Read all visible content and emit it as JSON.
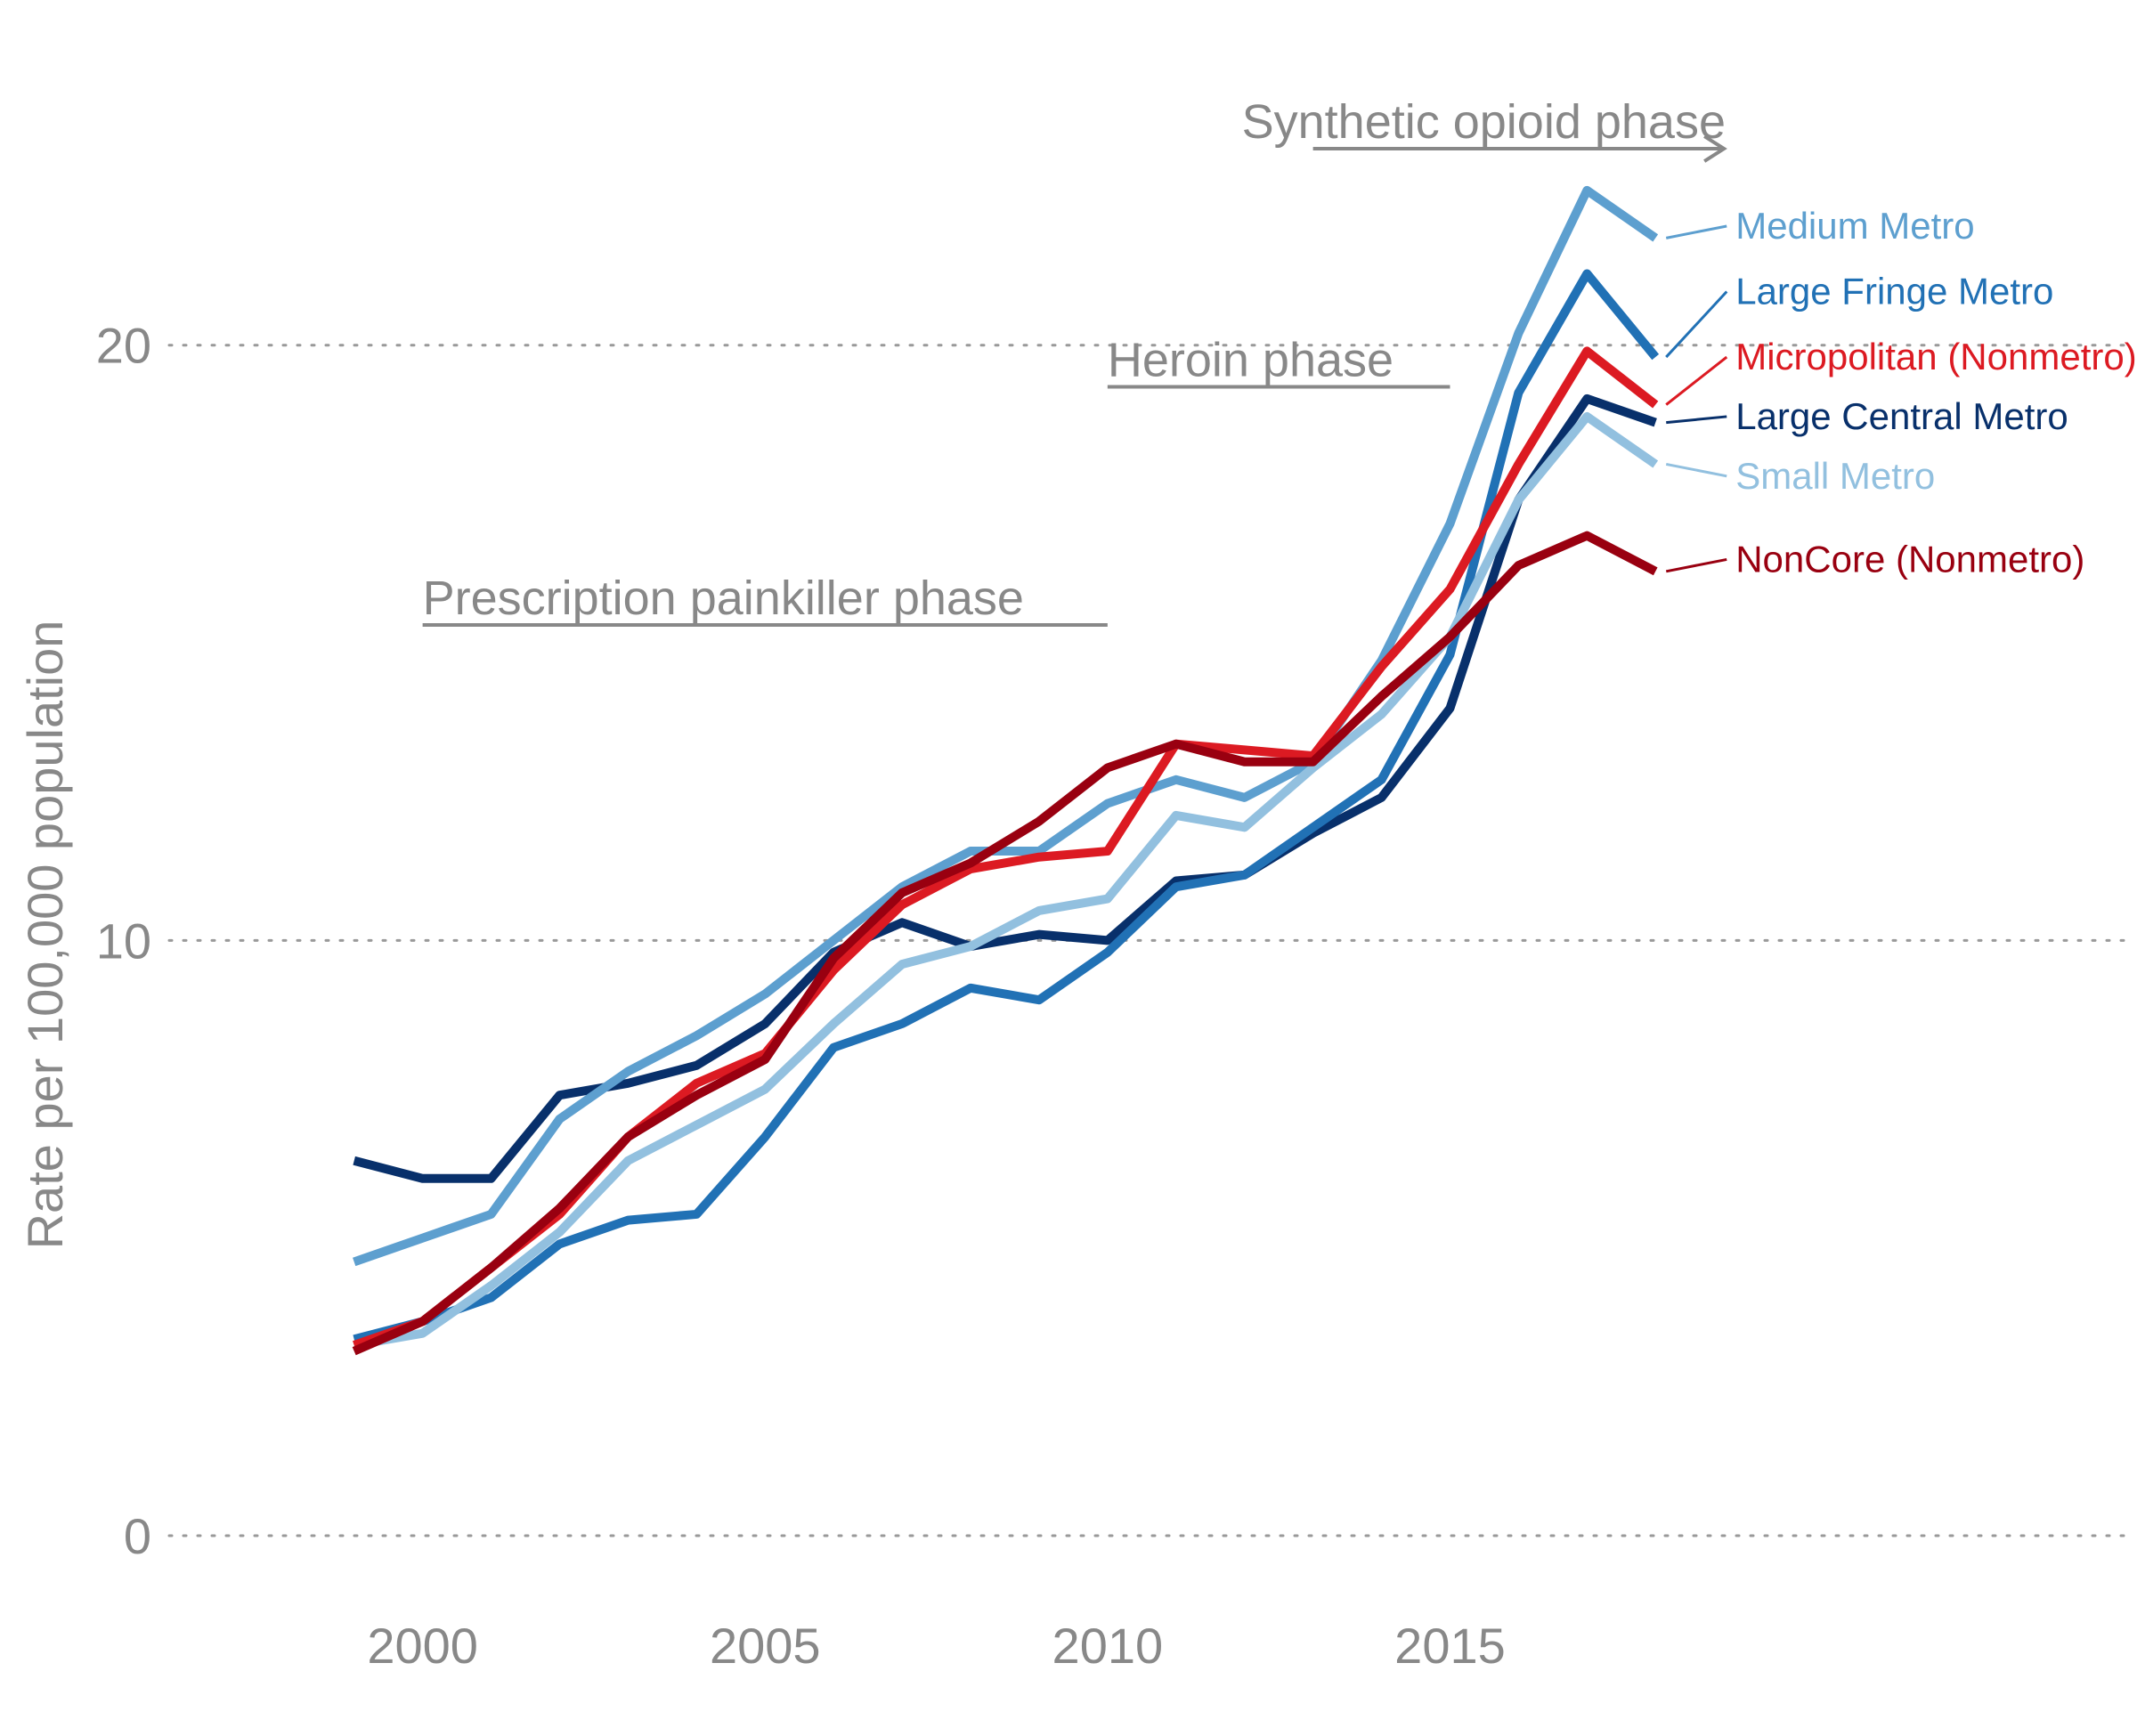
{
  "chart_data": {
    "type": "line",
    "title": "",
    "xlabel": "",
    "ylabel": "Rate per 100,000 population",
    "xlim": [
      1996.3,
      2024.9
    ],
    "ylim": [
      0,
      25.2
    ],
    "x_ticks": [
      2000,
      2005,
      2010,
      2015
    ],
    "y_ticks": [
      0,
      10,
      20
    ],
    "grid": "horizontal dotted",
    "legend": "direct labels at line ends",
    "x": [
      1999,
      2000,
      2001,
      2002,
      2003,
      2004,
      2005,
      2006,
      2007,
      2008,
      2009,
      2010,
      2011,
      2012,
      2013,
      2014,
      2015,
      2016,
      2017,
      2018
    ],
    "series": [
      {
        "name": "Large Central Metro",
        "color": "#08306b",
        "values": [
          6.3,
          6.0,
          6.0,
          7.4,
          7.6,
          7.9,
          8.6,
          9.8,
          10.3,
          9.9,
          10.1,
          10.0,
          11.0,
          11.1,
          11.8,
          12.4,
          13.9,
          17.4,
          19.1,
          18.7
        ]
      },
      {
        "name": "Large Fringe Metro",
        "color": "#2171b5",
        "values": [
          3.3,
          3.6,
          4.0,
          4.9,
          5.3,
          5.4,
          6.7,
          8.2,
          8.6,
          9.2,
          9.0,
          9.8,
          10.9,
          11.1,
          11.9,
          12.7,
          14.8,
          19.2,
          21.2,
          19.8
        ]
      },
      {
        "name": "Medium Metro",
        "color": "#5d9fcf",
        "values": [
          4.6,
          5.0,
          5.4,
          7.0,
          7.8,
          8.4,
          9.1,
          10.0,
          10.9,
          11.5,
          11.5,
          12.3,
          12.7,
          12.4,
          13.0,
          14.7,
          17.0,
          20.2,
          22.6,
          21.8
        ]
      },
      {
        "name": "Small Metro",
        "color": "#92c0df",
        "values": [
          3.2,
          3.4,
          4.2,
          5.1,
          6.3,
          6.9,
          7.5,
          8.6,
          9.6,
          9.9,
          10.5,
          10.7,
          12.1,
          11.9,
          12.9,
          13.8,
          15.1,
          17.4,
          18.8,
          18.0
        ]
      },
      {
        "name": "Micropolitan (Nonmetro)",
        "color": "#dc1a22",
        "values": [
          3.2,
          3.6,
          4.5,
          5.4,
          6.7,
          7.6,
          8.1,
          9.5,
          10.6,
          11.2,
          11.4,
          11.5,
          13.3,
          13.2,
          13.1,
          14.6,
          15.9,
          18.0,
          19.9,
          19.0
        ]
      },
      {
        "name": "NonCore (Nonmetro)",
        "color": "#990010",
        "values": [
          3.1,
          3.6,
          4.5,
          5.5,
          6.7,
          7.4,
          8.0,
          9.7,
          10.8,
          11.3,
          12.0,
          12.9,
          13.3,
          13.0,
          13.0,
          14.1,
          15.1,
          16.3,
          16.8,
          16.2
        ]
      }
    ],
    "annotations": [
      {
        "text": "Prescription painkiller phase",
        "x_start": 2000,
        "x_end": 2010,
        "y": 15.3
      },
      {
        "text": "Heroin phase",
        "x_start": 2010,
        "x_end": 2015,
        "y": 19.3
      },
      {
        "text": "Synthetic opioid phase",
        "x_start": 2013,
        "x_end": 2019,
        "y": 23.3,
        "arrow": true
      }
    ]
  }
}
